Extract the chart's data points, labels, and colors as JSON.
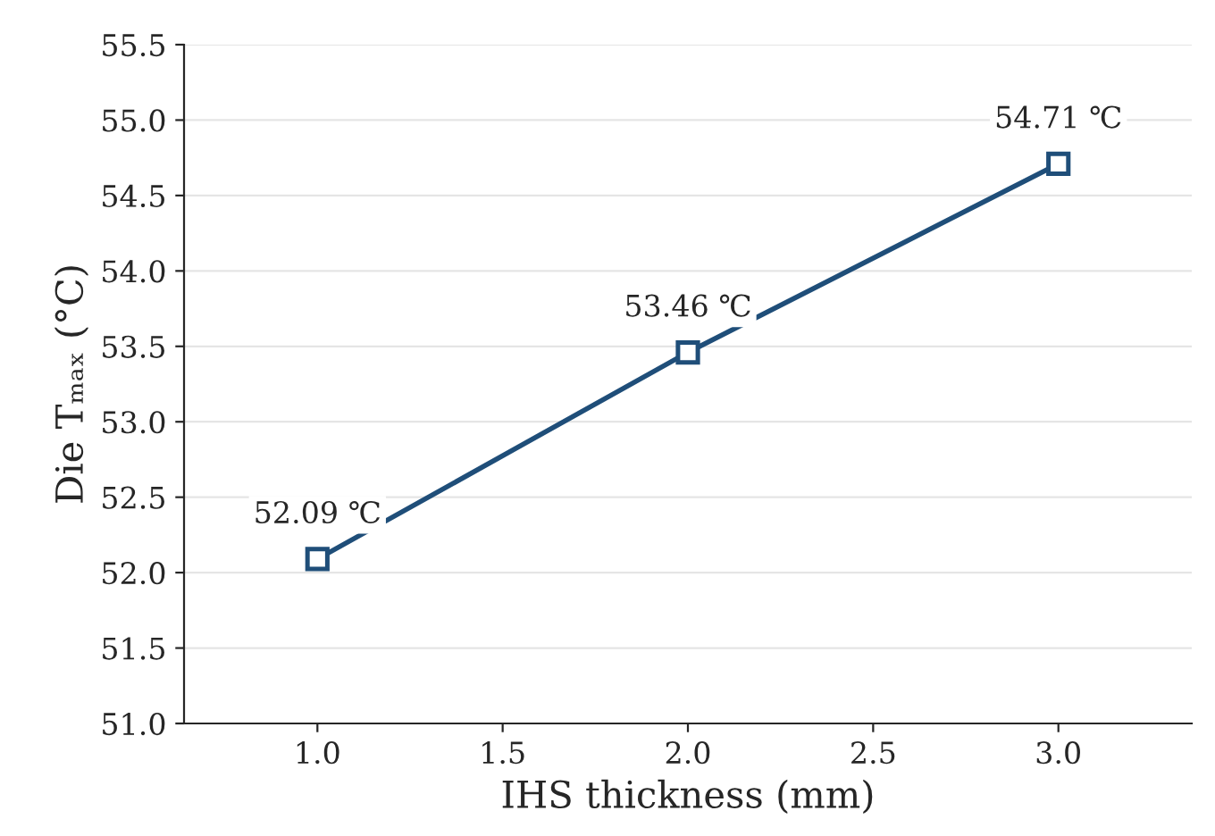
{
  "chart_data": {
    "type": "line",
    "xlabel": "IHS thickness (mm)",
    "ylabel": "Die Tₘₐₓ (°C)",
    "x": [
      1.0,
      2.0,
      3.0
    ],
    "series": [
      {
        "color": "#1f4e79",
        "values": [
          52.09,
          53.46,
          54.71
        ],
        "value_labels": [
          "52.09 ℃",
          "53.46 ℃",
          "54.71 ℃"
        ]
      }
    ],
    "xlim": [
      0.64,
      3.36
    ],
    "ylim": [
      51.0,
      55.5
    ],
    "xticks": [
      {
        "value": 1.0,
        "label": "1.0"
      },
      {
        "value": 1.5,
        "label": "1.5"
      },
      {
        "value": 2.0,
        "label": "2.0"
      },
      {
        "value": 2.5,
        "label": "2.5"
      },
      {
        "value": 3.0,
        "label": "3.0"
      }
    ],
    "yticks": [
      {
        "value": 51.0,
        "label": "51.0"
      },
      {
        "value": 51.5,
        "label": "51.5"
      },
      {
        "value": 52.0,
        "label": "52.0"
      },
      {
        "value": 52.5,
        "label": "52.5"
      },
      {
        "value": 53.0,
        "label": "53.0"
      },
      {
        "value": 53.5,
        "label": "53.5"
      },
      {
        "value": 54.0,
        "label": "54.0"
      },
      {
        "value": 54.5,
        "label": "54.5"
      },
      {
        "value": 55.0,
        "label": "55.0"
      },
      {
        "value": 55.5,
        "label": "55.5"
      }
    ],
    "grid": "y",
    "marker": "square",
    "line_style": "solid"
  }
}
